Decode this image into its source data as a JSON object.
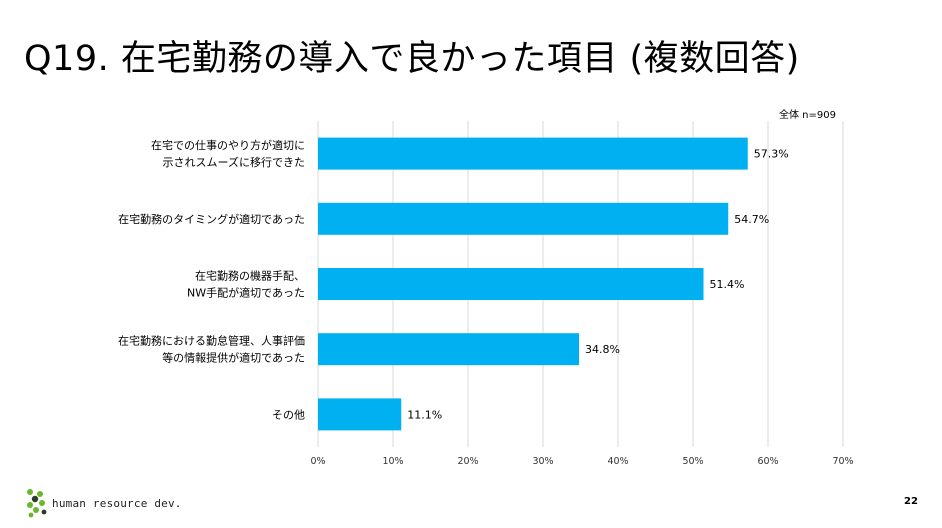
{
  "title": "Q19. 在宅勤務の導入で良かった項目 (複数回答)",
  "sample_note": "全体 n=909",
  "footer": {
    "logo_text": "human resource dev.",
    "page_number": "22"
  },
  "colors": {
    "bar": "#00b0f0",
    "grid": "#d9d9d9",
    "logo_green": "#6ab82a",
    "logo_dark": "#2c3a2a"
  },
  "chart_data": {
    "type": "bar",
    "orientation": "horizontal",
    "categories": [
      [
        "在宅での仕事のやり方が適切に",
        "示されスムーズに移行できた"
      ],
      [
        "在宅勤務のタイミングが適切であった"
      ],
      [
        "在宅勤務の機器手配、",
        "NW手配が適切であった"
      ],
      [
        "在宅勤務における勤怠管理、人事評価",
        "等の情報提供が適切であった"
      ],
      [
        "その他"
      ]
    ],
    "values": [
      57.3,
      54.7,
      51.4,
      34.8,
      11.1
    ],
    "value_labels": [
      "57.3%",
      "54.7%",
      "51.4%",
      "34.8%",
      "11.1%"
    ],
    "xlim": [
      0,
      70
    ],
    "xticks": [
      0,
      10,
      20,
      30,
      40,
      50,
      60,
      70
    ],
    "xtick_labels": [
      "0%",
      "10%",
      "20%",
      "30%",
      "40%",
      "50%",
      "60%",
      "70%"
    ],
    "grid": true,
    "legend": "none"
  }
}
